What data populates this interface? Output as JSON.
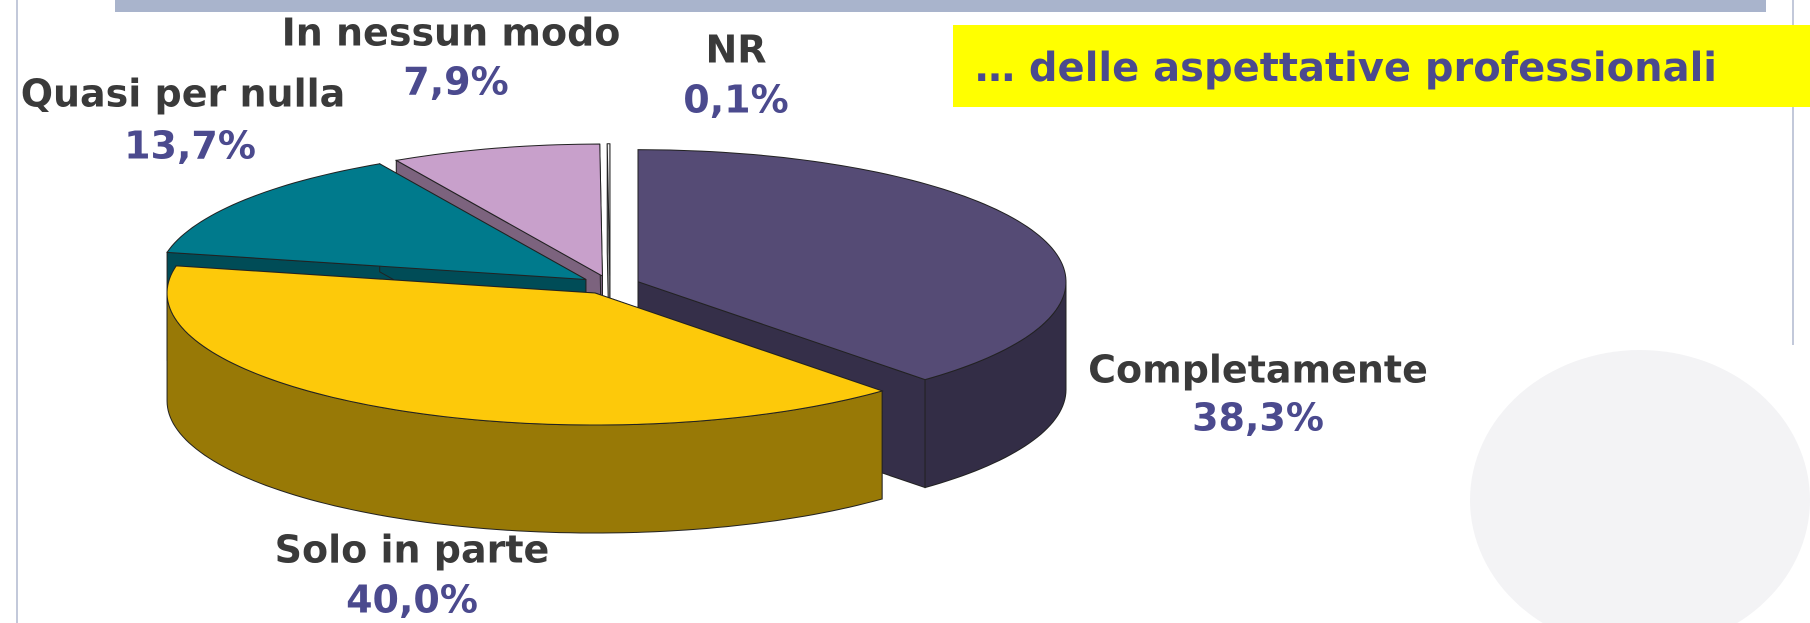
{
  "chart_data": {
    "type": "pie3d",
    "title": "… delle aspettative professionali",
    "categories": [
      "Completamente",
      "Solo in parte",
      "Quasi per nulla",
      "In nessun modo",
      "NR"
    ],
    "values": [
      38.3,
      40.0,
      13.7,
      7.9,
      0.1
    ],
    "value_labels": [
      "38,3%",
      "40,0%",
      "13,7%",
      "7,9%",
      "0,1%"
    ],
    "colors": [
      "#554b75",
      "#fdc90a",
      "#007a8c",
      "#c8a0cb",
      "#f4f4f4"
    ]
  }
}
